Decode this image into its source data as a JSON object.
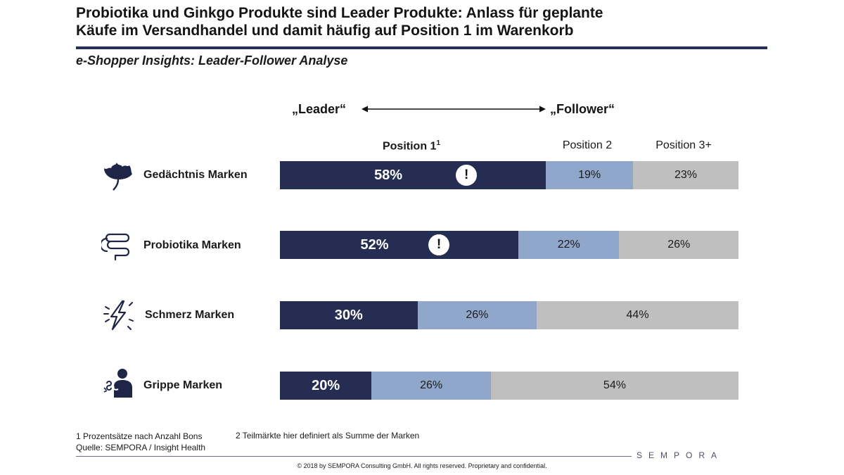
{
  "header": {
    "title_line1": "Probiotika und Ginkgo Produkte sind Leader Produkte: Anlass für geplante",
    "title_line2": "Käufe im Versandhandel und damit häufig auf Position 1 im Warenkorb",
    "subtitle": "e-Shopper Insights: Leader-Follower Analyse"
  },
  "scale": {
    "leader_label": "„Leader“",
    "follower_label": "„Follower“"
  },
  "columns": {
    "position1": "Position 1",
    "position1_footnote": "1",
    "position2": "Position 2",
    "position3": "Position 3+"
  },
  "chart_data": {
    "type": "bar",
    "orientation": "horizontal",
    "stacked": true,
    "percent_stacked": true,
    "categories": [
      "Gedächtnis Marken",
      "Probiotika Marken",
      "Schmerz Marken",
      "Grippe Marken"
    ],
    "series": [
      {
        "name": "Position 1",
        "values": [
          58,
          52,
          30,
          20
        ],
        "color": "#252e52"
      },
      {
        "name": "Position 2",
        "values": [
          19,
          22,
          26,
          26
        ],
        "color": "#90a6ca"
      },
      {
        "name": "Position 3+",
        "values": [
          23,
          26,
          44,
          54
        ],
        "color": "#bfbfbf"
      }
    ],
    "data_labels": [
      [
        "58%",
        "19%",
        "23%"
      ],
      [
        "52%",
        "22%",
        "26%"
      ],
      [
        "30%",
        "26%",
        "44%"
      ],
      [
        "20%",
        "26%",
        "54%"
      ]
    ],
    "highlight_marker": "!",
    "highlighted_rows": [
      0,
      1
    ]
  },
  "rows": [
    {
      "label": "Gedächtnis Marken",
      "icon": "ginkgo-leaf-icon"
    },
    {
      "label": "Probiotika Marken",
      "icon": "intestine-icon"
    },
    {
      "label": "Schmerz Marken",
      "icon": "lightning-pain-icon"
    },
    {
      "label": "Grippe Marken",
      "icon": "sick-person-icon"
    }
  ],
  "footer": {
    "footnote1": "1    Prozentsätze nach Anzahl Bons",
    "footnote2": "2    Teilmärkte hier definiert als Summe der Marken",
    "source": "Quelle: SEMPORA / Insight Health",
    "brand": "SEMPORA",
    "copyright": "© 2018 by SEMPORA Consulting GmbH. All rights reserved. Proprietary and confidential."
  },
  "colors": {
    "dark": "#252e52",
    "mid": "#90a6ca",
    "light": "#bfbfbf",
    "rule": "#26305a"
  }
}
